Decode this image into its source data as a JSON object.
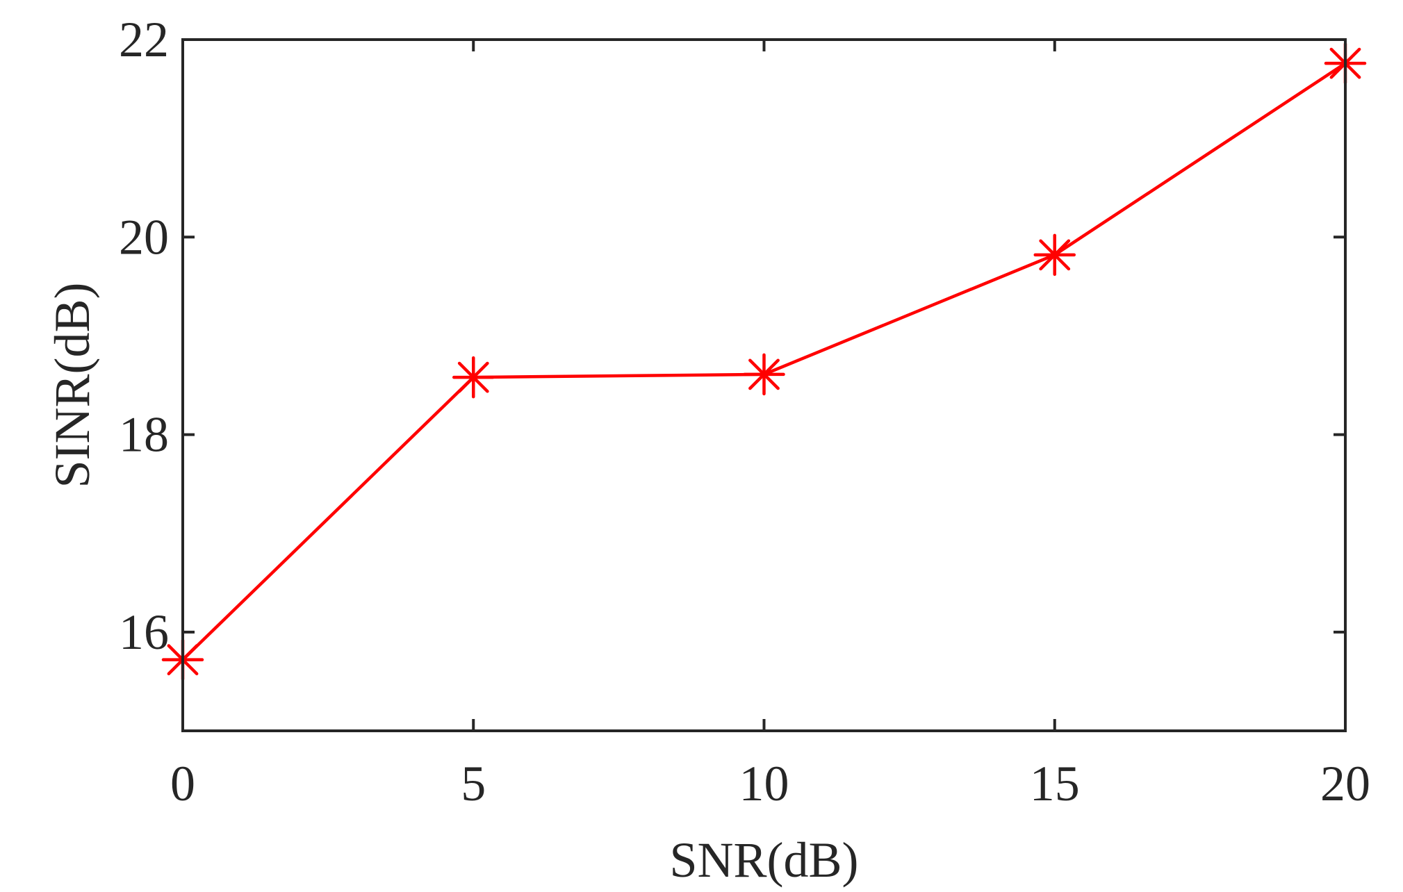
{
  "chart_data": {
    "type": "line",
    "xlabel": "SNR(dB)",
    "ylabel": "SINR(dB)",
    "xlim": [
      0,
      20
    ],
    "ylim": [
      15,
      22
    ],
    "xticks": [
      0,
      5,
      10,
      15,
      20
    ],
    "yticks": [
      16,
      18,
      20,
      22
    ],
    "grid": false,
    "series": [
      {
        "marker": "asterisk",
        "color": "#ff0000",
        "x": [
          0,
          5,
          10,
          15,
          20
        ],
        "y": [
          15.72,
          18.58,
          18.61,
          19.82,
          21.76
        ]
      }
    ]
  }
}
